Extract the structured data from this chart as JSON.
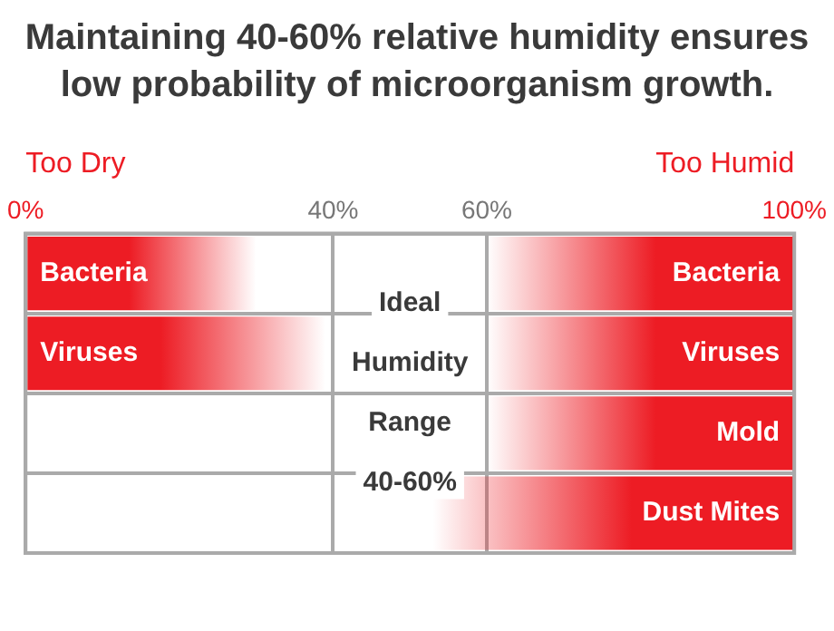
{
  "chart_data": {
    "type": "bar",
    "orientation": "horizontal",
    "title": "Maintaining 40-60% relative humidity ensures low probability of microorganism growth.",
    "categories": [
      "Bacteria",
      "Viruses",
      "Mold",
      "Dust Mites"
    ],
    "series": [
      {
        "name": "Too Dry",
        "color": "#ed1c24",
        "base": [
          0,
          0,
          null,
          null
        ],
        "values": [
          30,
          39,
          null,
          null
        ]
      },
      {
        "name": "Too Humid",
        "color": "#ed1c24",
        "base": [
          60,
          60,
          60,
          53
        ],
        "values": [
          40,
          40,
          40,
          47
        ]
      }
    ],
    "xlim": [
      0,
      100
    ],
    "xticks": [
      {
        "value": 0,
        "label": "0%"
      },
      {
        "value": 40,
        "label": "40%"
      },
      {
        "value": 60,
        "label": "60%"
      },
      {
        "value": 100,
        "label": "100%"
      }
    ],
    "annotations": [
      "Ideal Humidity Range 40-60%"
    ],
    "grid": true,
    "legend": false
  }
}
